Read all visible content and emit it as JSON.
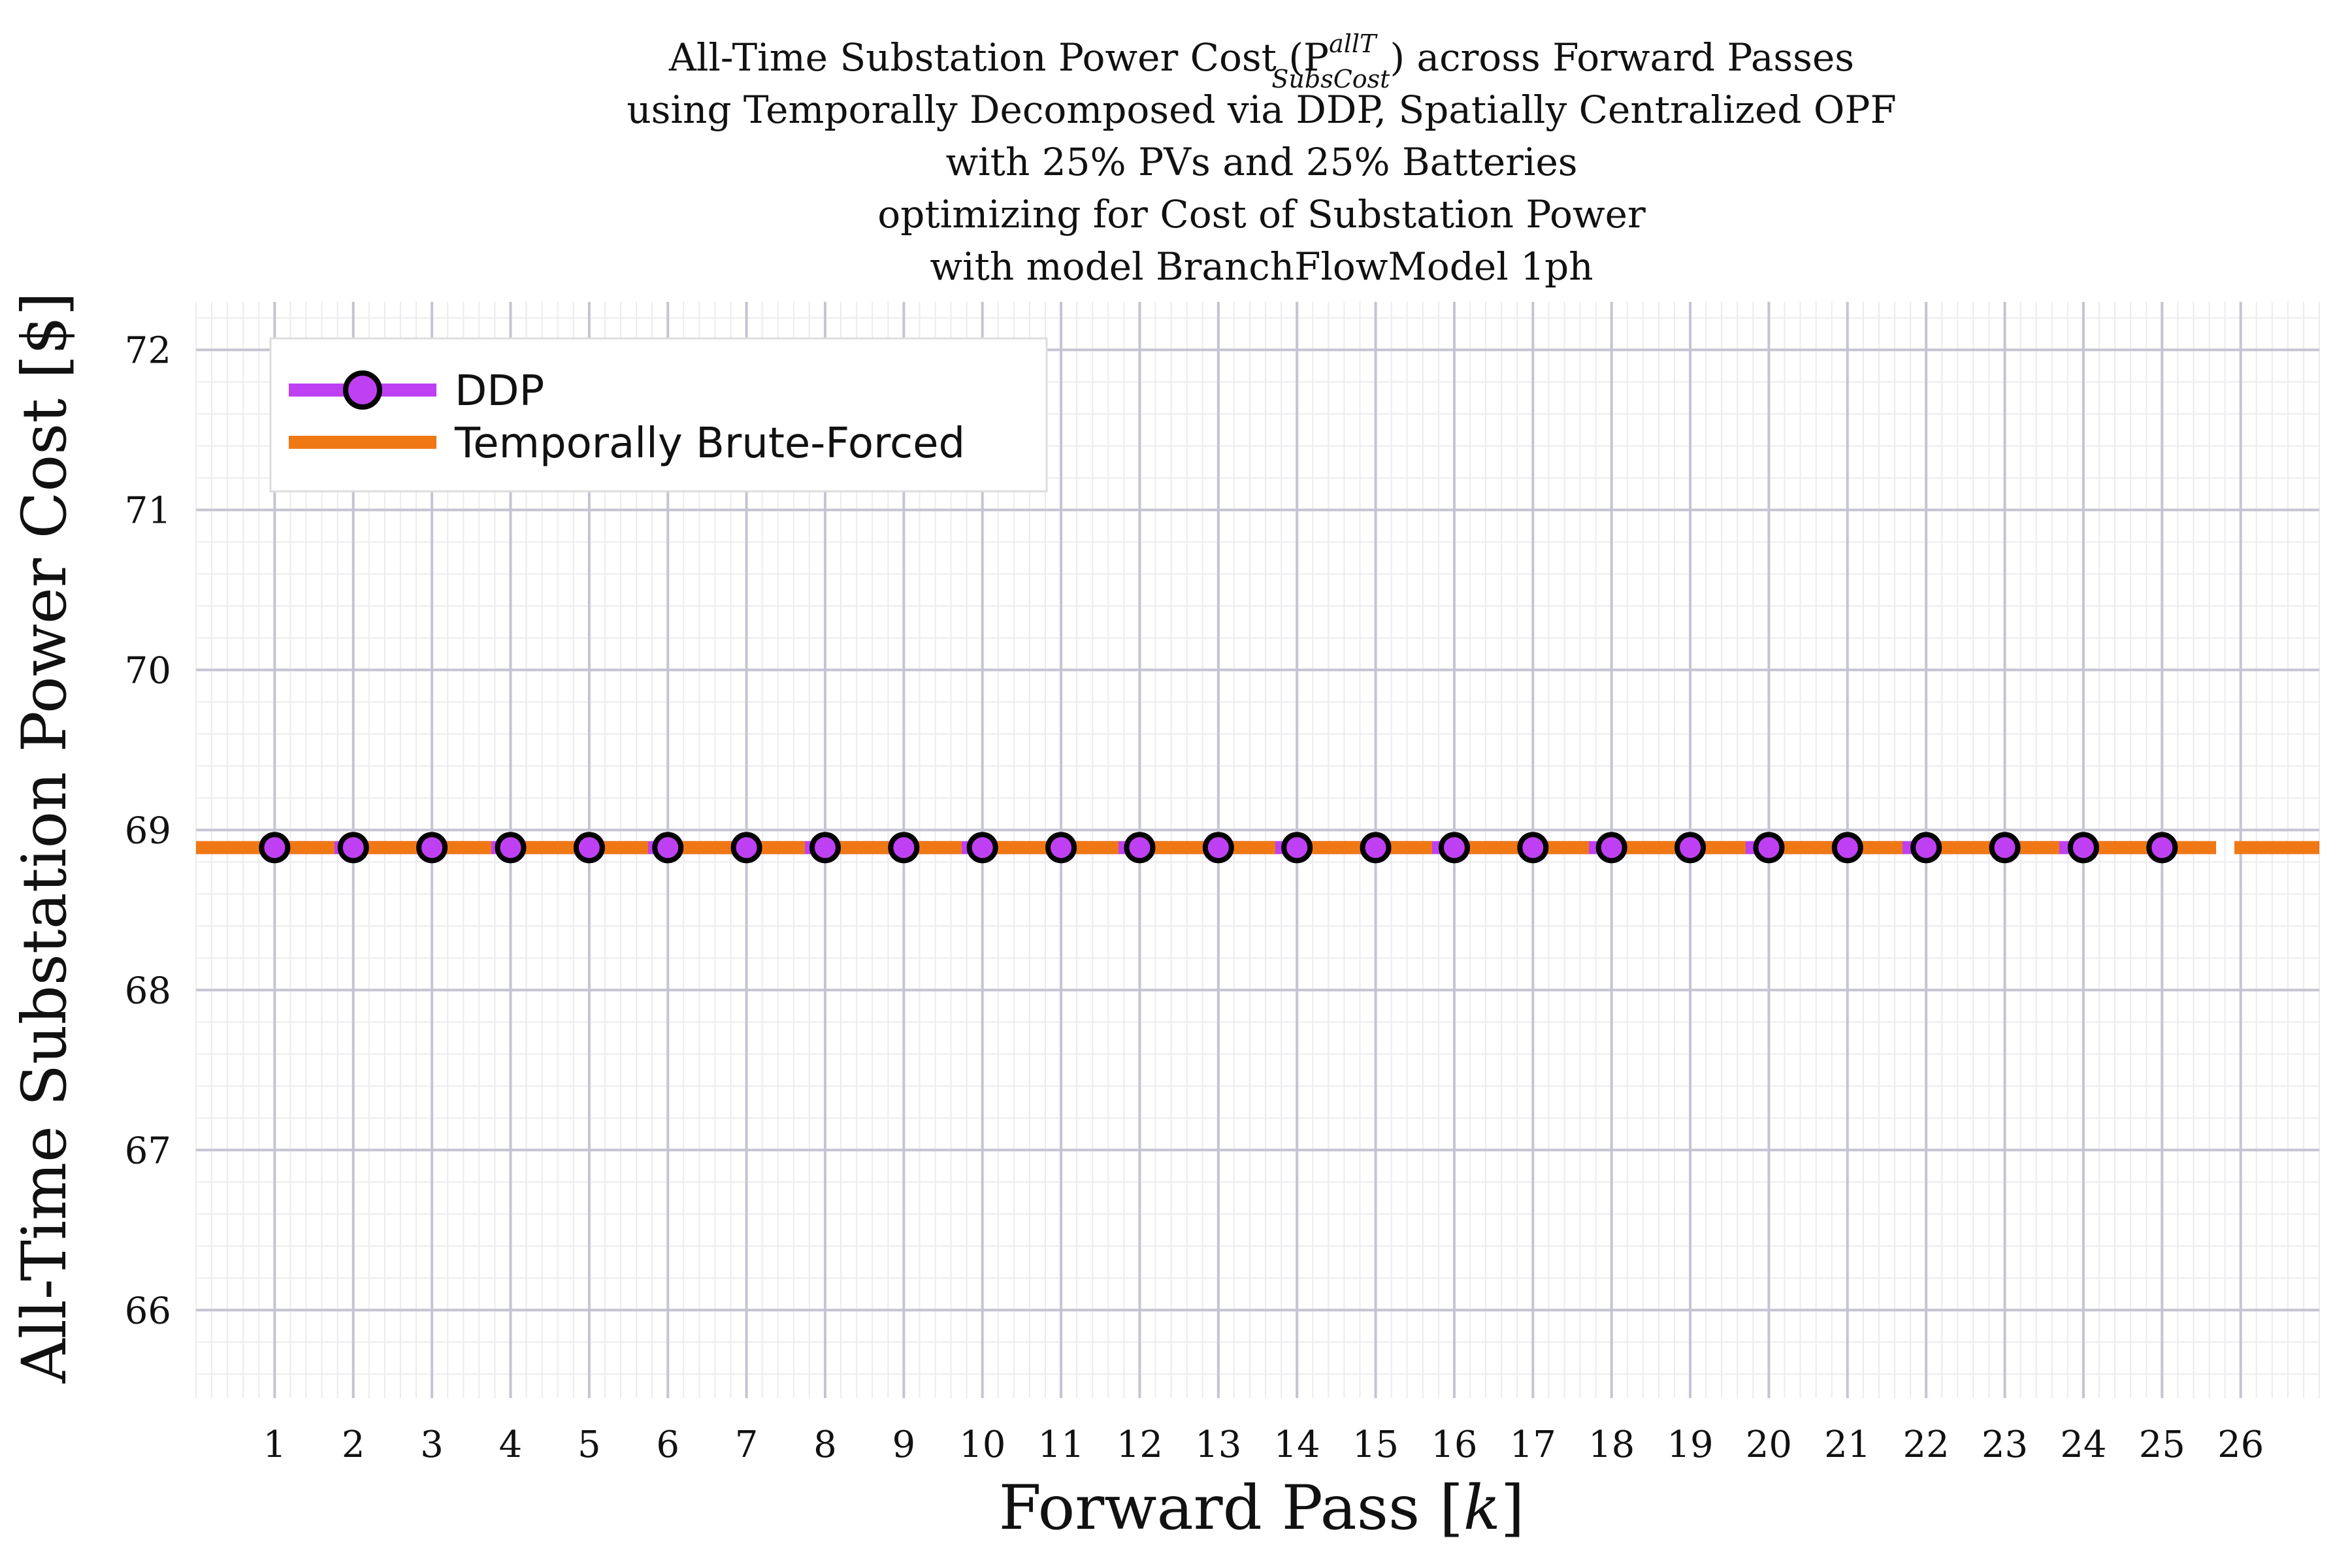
{
  "chart_data": {
    "type": "line",
    "title_lines": [
      "All-Time Substation Power Cost (P",
      "using Temporally Decomposed via DDP, Spatially Centralized OPF",
      "with 25% PVs and 25% Batteries",
      "optimizing for Cost of Substation Power",
      "with model BranchFlowModel 1ph"
    ],
    "title_math": {
      "superscript": "allT",
      "subscript": "SubsCost",
      "suffix": ") across Forward Passes"
    },
    "xlabel_prefix": "Forward Pass [",
    "xlabel_var": "k",
    "xlabel_suffix": "]",
    "ylabel": "All-Time Substation Power Cost [$]",
    "xlim": [
      0.0,
      27.0
    ],
    "ylim": [
      65.45,
      72.3
    ],
    "x_ticks": [
      1,
      2,
      3,
      4,
      5,
      6,
      7,
      8,
      9,
      10,
      11,
      12,
      13,
      14,
      15,
      16,
      17,
      18,
      19,
      20,
      21,
      22,
      23,
      24,
      25,
      26
    ],
    "y_ticks": [
      66,
      67,
      68,
      69,
      70,
      71,
      72
    ],
    "grid": true,
    "legend_position": "top-left",
    "series": [
      {
        "name": "DDP",
        "color": "#bf40f2",
        "marker": "circle",
        "x": [
          1,
          2,
          3,
          4,
          5,
          6,
          7,
          8,
          9,
          10,
          11,
          12,
          13,
          14,
          15,
          16,
          17,
          18,
          19,
          20,
          21,
          22,
          23,
          24,
          25
        ],
        "values": [
          68.89,
          68.89,
          68.89,
          68.89,
          68.89,
          68.89,
          68.89,
          68.89,
          68.89,
          68.89,
          68.89,
          68.89,
          68.89,
          68.89,
          68.89,
          68.89,
          68.89,
          68.89,
          68.89,
          68.89,
          68.89,
          68.89,
          68.89,
          68.89,
          68.89
        ]
      },
      {
        "name": "Temporally Brute-Forced",
        "color": "#f07814",
        "style": "dashed",
        "value": 68.89
      }
    ]
  }
}
